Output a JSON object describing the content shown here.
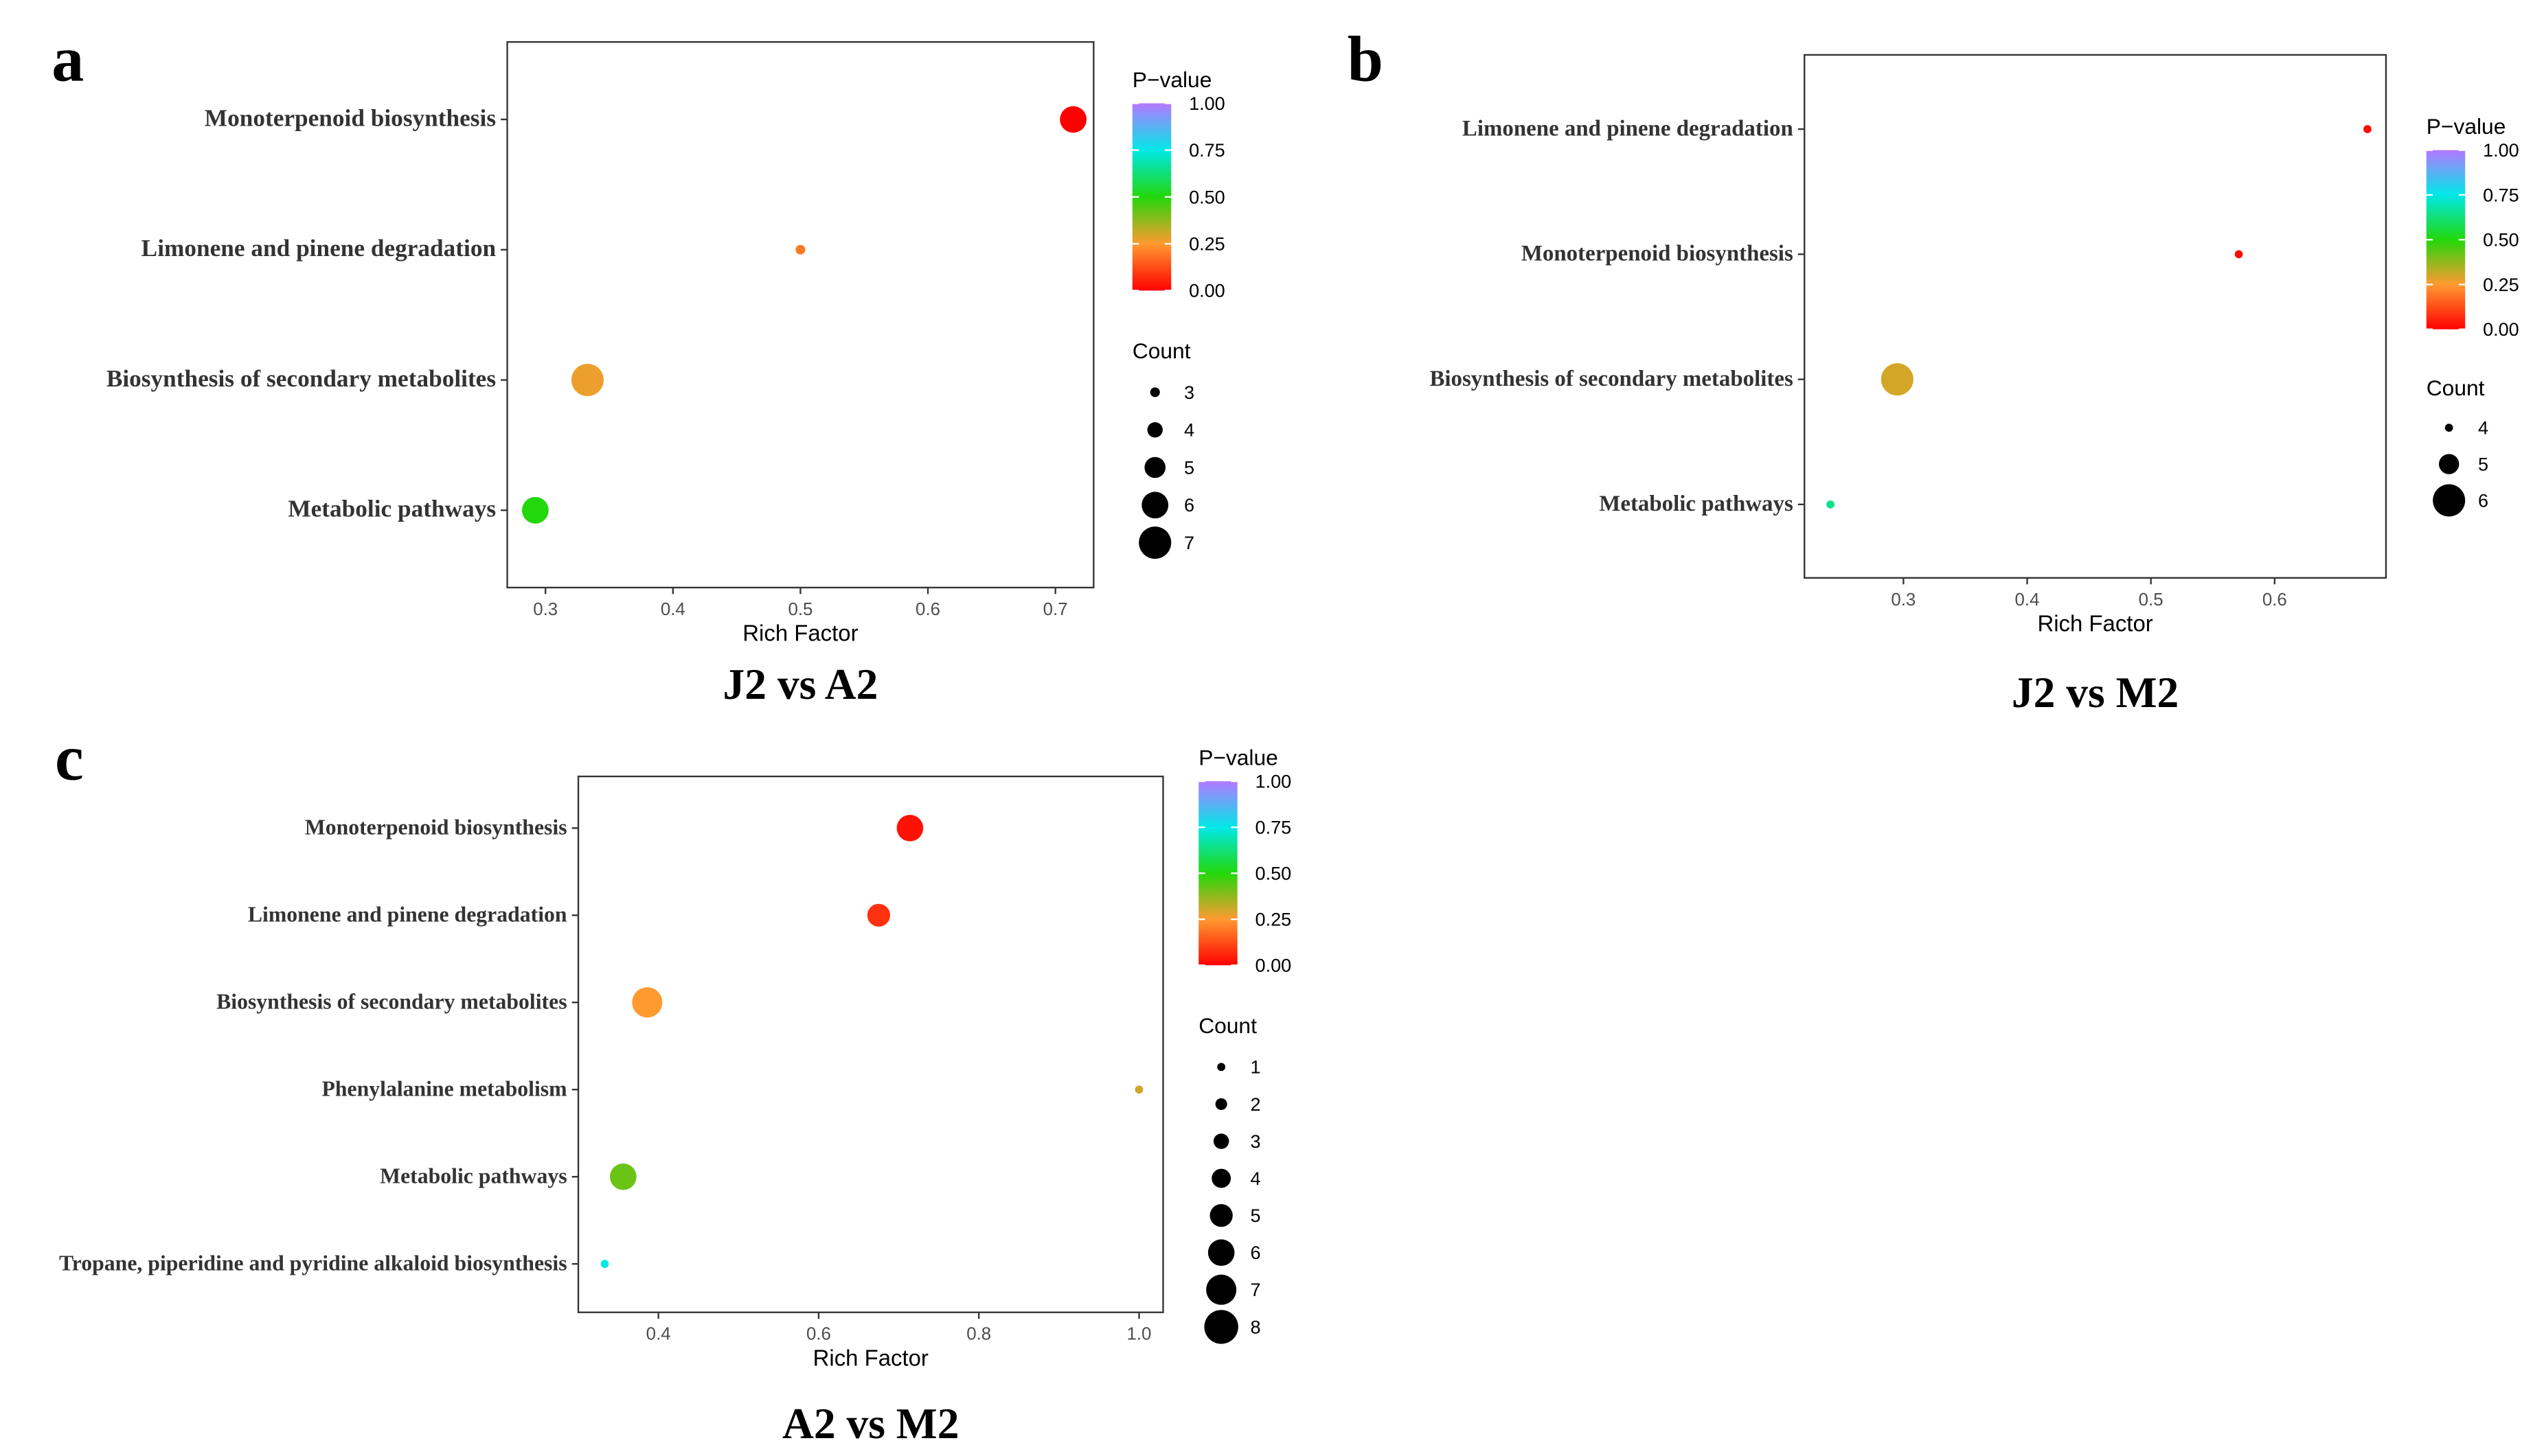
{
  "figure": {
    "panels": [
      "a",
      "b",
      "c"
    ],
    "legend_color_title": "P−value",
    "legend_size_title": "Count"
  },
  "chart_data": [
    {
      "panel": "a",
      "type": "scatter",
      "title": "J2 vs A2",
      "xlabel": "Rich Factor",
      "ylabel": "",
      "xlim": [
        0.27,
        0.73
      ],
      "xticks": [
        0.3,
        0.4,
        0.5,
        0.6,
        0.7
      ],
      "xtick_labels": [
        "0.3",
        "0.4",
        "0.5",
        "0.6",
        "0.7"
      ],
      "categories": [
        "Monoterpenoid biosynthesis",
        "Limonene and pinene degradation",
        "Biosynthesis of secondary metabolites",
        "Metabolic pathways"
      ],
      "points": [
        {
          "pathway": "Monoterpenoid biosynthesis",
          "rich_factor": 0.714,
          "count": 6,
          "p_value": 0.0
        },
        {
          "pathway": "Limonene and pinene degradation",
          "rich_factor": 0.5,
          "count": 3,
          "p_value": 0.2
        },
        {
          "pathway": "Biosynthesis of secondary metabolites",
          "rich_factor": 0.333,
          "count": 7,
          "p_value": 0.27
        },
        {
          "pathway": "Metabolic pathways",
          "rich_factor": 0.292,
          "count": 6,
          "p_value": 0.5
        }
      ],
      "color_legend_ticks": [
        "1.00",
        "0.75",
        "0.50",
        "0.25",
        "0.00"
      ],
      "size_legend": [
        3,
        4,
        5,
        6,
        7
      ]
    },
    {
      "panel": "b",
      "type": "scatter",
      "title": "J2 vs M2",
      "xlabel": "Rich Factor",
      "ylabel": "",
      "xlim": [
        0.22,
        0.69
      ],
      "xticks": [
        0.3,
        0.4,
        0.5,
        0.6
      ],
      "xtick_labels": [
        "0.3",
        "0.4",
        "0.5",
        "0.6"
      ],
      "categories": [
        "Limonene and pinene degradation",
        "Monoterpenoid biosynthesis",
        "Biosynthesis of secondary metabolites",
        "Metabolic pathways"
      ],
      "points": [
        {
          "pathway": "Limonene and pinene degradation",
          "rich_factor": 0.675,
          "count": 4,
          "p_value": 0.02
        },
        {
          "pathway": "Monoterpenoid biosynthesis",
          "rich_factor": 0.571,
          "count": 4,
          "p_value": 0.02
        },
        {
          "pathway": "Biosynthesis of secondary metabolites",
          "rich_factor": 0.295,
          "count": 6,
          "p_value": 0.3
        },
        {
          "pathway": "Metabolic pathways",
          "rich_factor": 0.241,
          "count": 4,
          "p_value": 0.65
        }
      ],
      "color_legend_ticks": [
        "1.00",
        "0.75",
        "0.50",
        "0.25",
        "0.00"
      ],
      "size_legend": [
        4,
        5,
        6
      ]
    },
    {
      "panel": "c",
      "type": "scatter",
      "title": "A2 vs M2",
      "xlabel": "Rich Factor",
      "ylabel": "",
      "xlim": [
        0.3,
        1.03
      ],
      "xticks": [
        0.4,
        0.6,
        0.8,
        1.0
      ],
      "xtick_labels": [
        "0.4",
        "0.6",
        "0.8",
        "1.0"
      ],
      "categories": [
        "Monoterpenoid biosynthesis",
        "Limonene and pinene degradation",
        "Biosynthesis of secondary metabolites",
        "Phenylalanine metabolism",
        "Metabolic pathways",
        "Tropane, piperidine and pyridine alkaloid biosynthesis"
      ],
      "points": [
        {
          "pathway": "Monoterpenoid biosynthesis",
          "rich_factor": 0.714,
          "count": 6,
          "p_value": 0.03
        },
        {
          "pathway": "Limonene and pinene degradation",
          "rich_factor": 0.675,
          "count": 5,
          "p_value": 0.08
        },
        {
          "pathway": "Biosynthesis of secondary metabolites",
          "rich_factor": 0.386,
          "count": 7,
          "p_value": 0.25
        },
        {
          "pathway": "Phenylalanine metabolism",
          "rich_factor": 1.0,
          "count": 1,
          "p_value": 0.3
        },
        {
          "pathway": "Metabolic pathways",
          "rich_factor": 0.356,
          "count": 6,
          "p_value": 0.42
        },
        {
          "pathway": "Tropane, piperidine and pyridine alkaloid biosynthesis",
          "rich_factor": 0.333,
          "count": 1,
          "p_value": 0.75
        }
      ],
      "color_legend_ticks": [
        "1.00",
        "0.75",
        "0.50",
        "0.25",
        "0.00"
      ],
      "size_legend": [
        1,
        2,
        3,
        4,
        5,
        6,
        7,
        8
      ]
    }
  ]
}
